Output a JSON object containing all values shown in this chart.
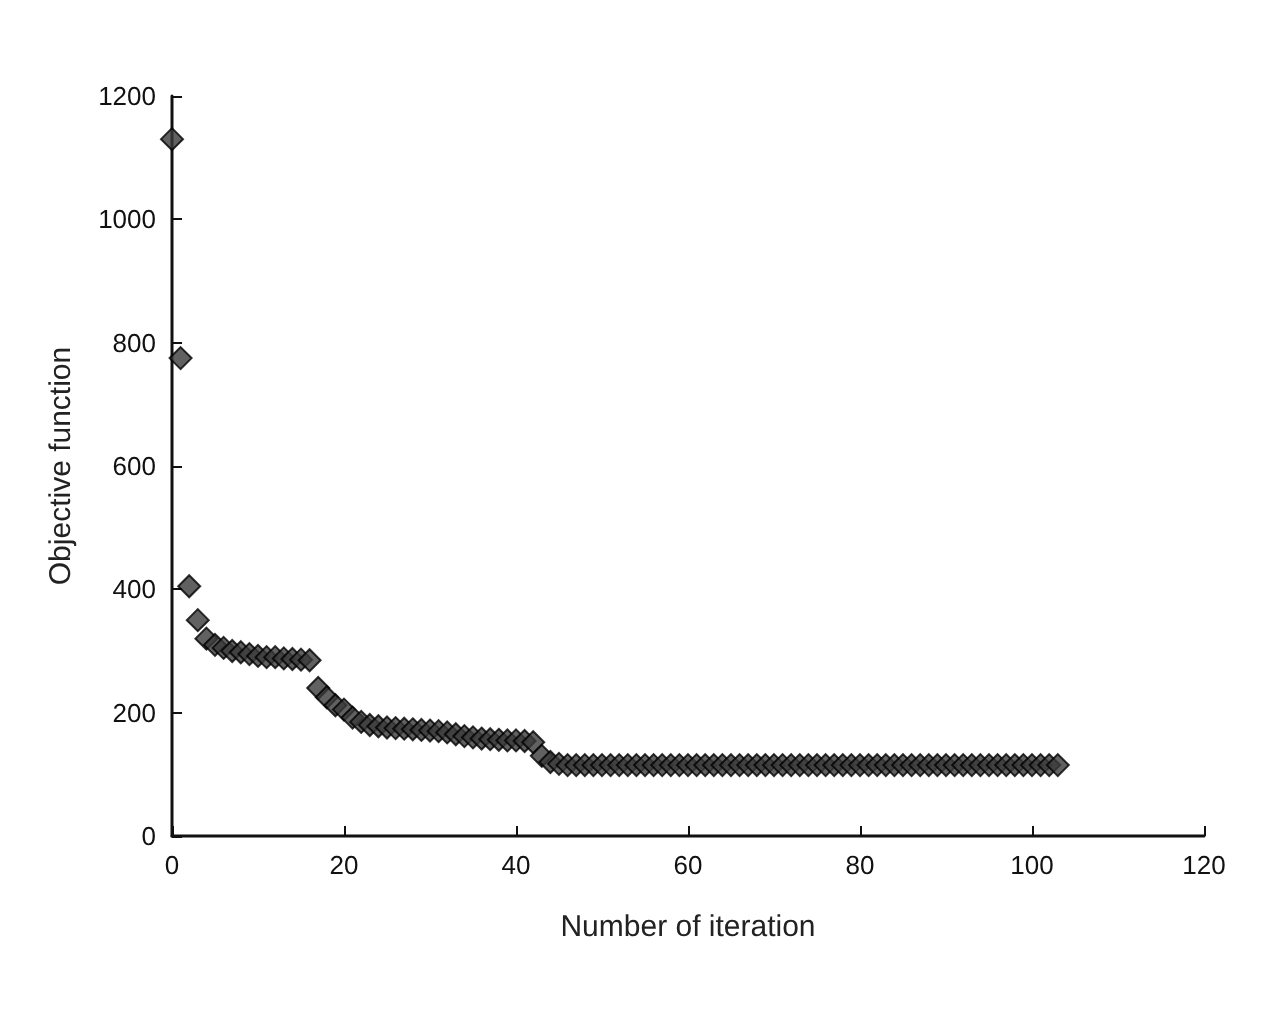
{
  "chart_data": {
    "type": "scatter",
    "xlabel": "Number of iteration",
    "ylabel": "Objective function",
    "x": [
      0,
      1,
      2,
      3,
      4,
      5,
      6,
      7,
      8,
      9,
      10,
      11,
      12,
      13,
      14,
      15,
      16,
      17,
      18,
      19,
      20,
      21,
      22,
      23,
      24,
      25,
      26,
      27,
      28,
      29,
      30,
      31,
      32,
      33,
      34,
      35,
      36,
      37,
      38,
      39,
      40,
      41,
      42,
      43,
      44,
      45,
      46,
      47,
      48,
      49,
      50,
      51,
      52,
      53,
      54,
      55,
      56,
      57,
      58,
      59,
      60,
      61,
      62,
      63,
      64,
      65,
      66,
      67,
      68,
      69,
      70,
      71,
      72,
      73,
      74,
      75,
      76,
      77,
      78,
      79,
      80,
      81,
      82,
      83,
      84,
      85,
      86,
      87,
      88,
      89,
      90,
      91,
      92,
      93,
      94,
      95,
      96,
      97,
      98,
      99,
      100,
      101,
      102,
      103
    ],
    "series": [
      {
        "color": "#3a3a3a",
        "values": [
          1130,
          775,
          405,
          350,
          320,
          310,
          305,
          300,
          298,
          295,
          292,
          290,
          290,
          288,
          287,
          286,
          285,
          240,
          225,
          212,
          205,
          192,
          185,
          180,
          178,
          176,
          175,
          174,
          173,
          172,
          171,
          170,
          168,
          165,
          162,
          160,
          158,
          157,
          156,
          155,
          155,
          154,
          152,
          130,
          120,
          117,
          115,
          115,
          115,
          115,
          115,
          115,
          115,
          115,
          115,
          115,
          115,
          115,
          115,
          115,
          115,
          115,
          115,
          115,
          115,
          115,
          115,
          115,
          115,
          115,
          115,
          115,
          115,
          115,
          115,
          115,
          115,
          115,
          115,
          115,
          115,
          115,
          115,
          115,
          115,
          115,
          115,
          115,
          115,
          115,
          115,
          115,
          115,
          115,
          115,
          115,
          115,
          115,
          115,
          115,
          115,
          115,
          115,
          115
        ]
      }
    ],
    "xlim": [
      0,
      120
    ],
    "xticks": [
      0,
      20,
      40,
      60,
      80,
      100,
      120
    ],
    "ylim": [
      0,
      1200
    ],
    "yticks": [
      0,
      200,
      400,
      600,
      800,
      1000,
      1200
    ],
    "grid": false,
    "marker": "diamond"
  }
}
